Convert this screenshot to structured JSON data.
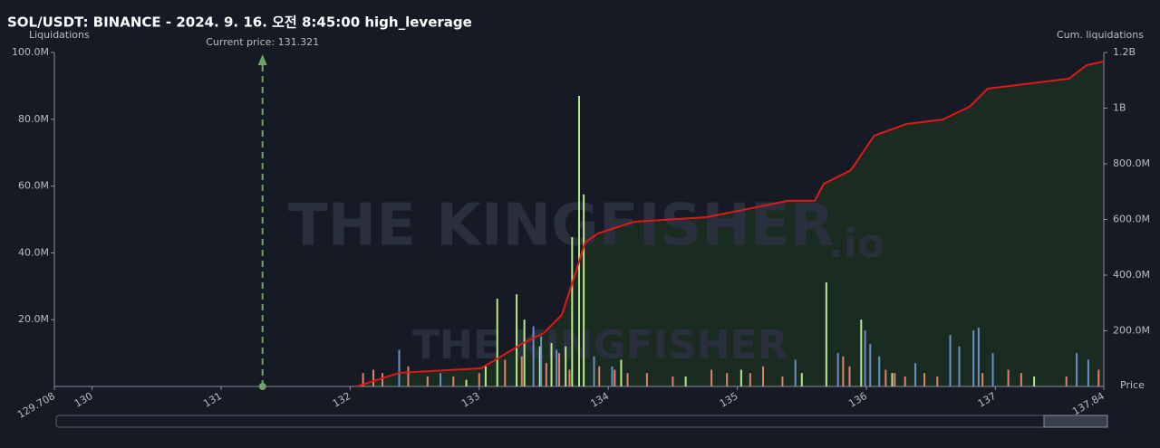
{
  "chart_data": {
    "type": "bar",
    "title": "SOL/USDT: BINANCE - 2024. 9. 16. 오전 8:45:00 high_leverage",
    "y_label": "Liquidations",
    "y2_label": "Cum. liquidations",
    "x_label": "Price",
    "watermark": "THE KINGFISHER",
    "watermark_suffix": ".io",
    "current_price": {
      "value": 131.321,
      "label": "Current price: 131.321",
      "color": "#6fa36a"
    },
    "xlim": [
      129.708,
      137.84
    ],
    "xticks": [
      129.708,
      130,
      131,
      132,
      133,
      134,
      135,
      136,
      137,
      137.84
    ],
    "ylim": [
      0,
      100000000
    ],
    "yticks": [
      {
        "value": 20000000,
        "label": "20.0M"
      },
      {
        "value": 40000000,
        "label": "40.0M"
      },
      {
        "value": 60000000,
        "label": "60.0M"
      },
      {
        "value": 80000000,
        "label": "80.0M"
      },
      {
        "value": 100000000,
        "label": "100.0M"
      }
    ],
    "y2lim": [
      0,
      1200000000
    ],
    "y2ticks": [
      {
        "value": 200000000,
        "label": "200.0M"
      },
      {
        "value": 400000000,
        "label": "400.0M"
      },
      {
        "value": 600000000,
        "label": "600.0M"
      },
      {
        "value": 800000000,
        "label": "800.0M"
      },
      {
        "value": 1000000000,
        "label": "1B"
      },
      {
        "value": 1200000000,
        "label": "1.2B"
      }
    ],
    "series": [
      {
        "type": "bar",
        "color": "#b9e88c",
        "x": [
          133.774,
          133.81,
          133.72,
          133.14,
          133.29,
          135.69,
          135.96,
          133.35,
          133.56,
          133.67,
          133.47,
          133.05,
          134.1,
          135.03,
          136.2,
          137.3,
          132.9,
          134.6,
          135.5
        ],
        "values": [
          87000000,
          57500000,
          44700000,
          26300000,
          27600000,
          31200000,
          20000000,
          20000000,
          13000000,
          12000000,
          12000000,
          6000000,
          8000000,
          5000000,
          4000000,
          3000000,
          2000000,
          3000000,
          4000000
        ]
      },
      {
        "type": "bar",
        "color": "#6d8fc6",
        "x": [
          136.87,
          136.83,
          135.99,
          136.03,
          136.65,
          132.38,
          133.48,
          133.42,
          133.89,
          135.45,
          135.78,
          136.98,
          137.63,
          137.72,
          136.38,
          136.72,
          133.6,
          136.1,
          134.03,
          132.7
        ],
        "values": [
          17600000,
          16800000,
          16800000,
          12700000,
          15400000,
          11000000,
          15000000,
          18000000,
          9000000,
          8000000,
          10000000,
          10000000,
          10000000,
          8000000,
          7000000,
          12000000,
          11000000,
          9000000,
          6000000,
          4000000
        ]
      },
      {
        "type": "bar",
        "color": "#e0826c",
        "x": [
          132.1,
          132.18,
          132.25,
          132.45,
          132.6,
          132.8,
          133.0,
          133.2,
          133.33,
          133.52,
          133.62,
          133.7,
          133.93,
          134.05,
          134.15,
          134.3,
          134.5,
          134.8,
          134.92,
          135.1,
          135.2,
          135.35,
          135.82,
          135.87,
          136.15,
          136.22,
          136.3,
          136.45,
          136.55,
          136.9,
          137.1,
          137.2,
          137.55,
          137.8
        ],
        "values": [
          4000000,
          5000000,
          4000000,
          6000000,
          3000000,
          3000000,
          4000000,
          8000000,
          9000000,
          7000000,
          10000000,
          5000000,
          6000000,
          5000000,
          4000000,
          4000000,
          3000000,
          5000000,
          4000000,
          4000000,
          6000000,
          3000000,
          9000000,
          6000000,
          5000000,
          4000000,
          3000000,
          4000000,
          3000000,
          4000000,
          5000000,
          4000000,
          3000000,
          5000000
        ]
      },
      {
        "type": "line",
        "axis": "y2",
        "color": "#e01818",
        "fill": "#1a2b22",
        "x": [
          132.05,
          132.38,
          133.01,
          133.12,
          133.33,
          133.5,
          133.64,
          133.75,
          133.82,
          133.92,
          134.2,
          134.76,
          135.04,
          135.39,
          135.6,
          135.67,
          135.88,
          136.06,
          136.31,
          136.59,
          136.8,
          136.94,
          137.57,
          137.71,
          137.84
        ],
        "values": [
          0,
          49000000,
          65000000,
          94000000,
          153000000,
          192000000,
          257000000,
          413000000,
          517000000,
          550000000,
          592000000,
          608000000,
          634000000,
          667000000,
          667000000,
          728000000,
          777000000,
          901000000,
          943000000,
          959000000,
          1005000000,
          1070000000,
          1106000000,
          1155000000,
          1168000000
        ]
      }
    ]
  }
}
